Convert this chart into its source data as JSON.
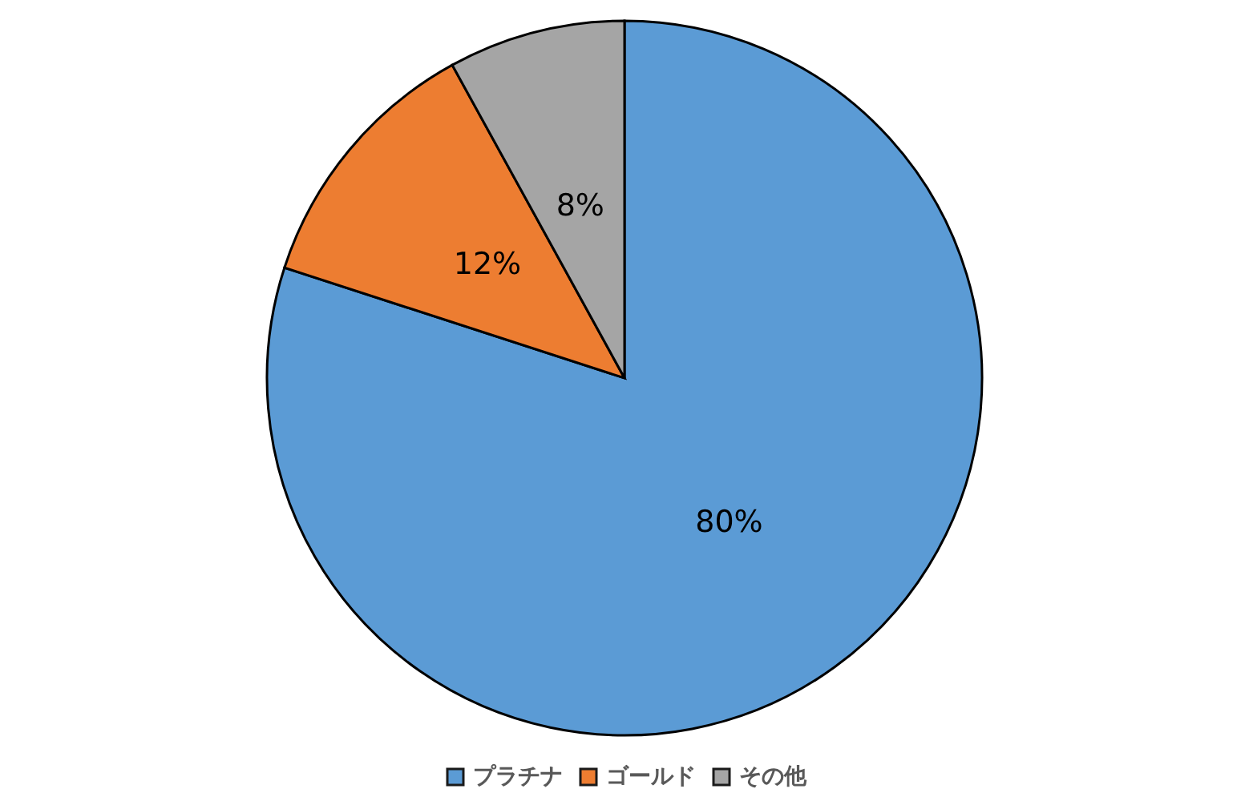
{
  "chart_data": {
    "type": "pie",
    "categories": [
      "プラチナ",
      "ゴールド",
      "その他"
    ],
    "values": [
      80,
      12,
      8
    ],
    "colors": [
      "#5b9bd5",
      "#ed7d31",
      "#a5a5a5"
    ],
    "value_labels": [
      "80%",
      "12%",
      "8%"
    ],
    "legend": "bottom"
  }
}
